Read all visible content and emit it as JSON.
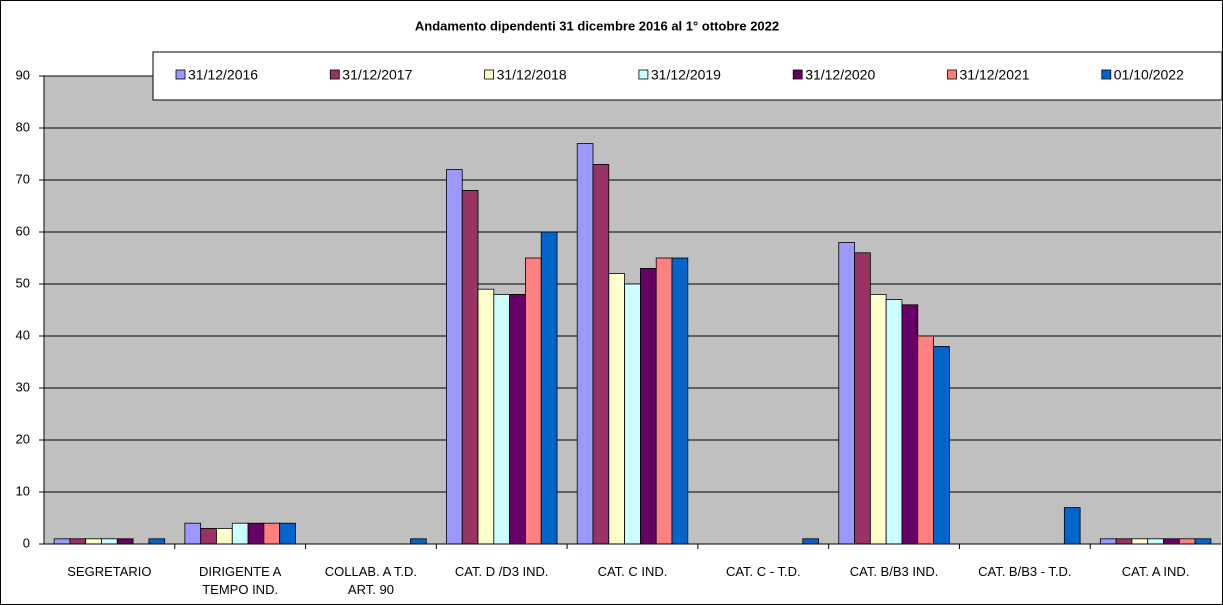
{
  "chart_data": {
    "type": "bar",
    "title": "Andamento dipendenti 31 dicembre 2016 al 1° ottobre 2022",
    "categories": [
      "SEGRETARIO",
      "DIRIGENTE A\nTEMPO IND.",
      "COLLAB. A T.D.\nART. 90",
      "CAT. D /D3 IND.",
      "CAT. C IND.",
      "CAT. C - T.D.",
      "CAT. B/B3 IND.",
      "CAT. B/B3 - T.D.",
      "CAT. A IND."
    ],
    "series": [
      {
        "name": "31/12/2016",
        "color": "#9999ff",
        "values": [
          1,
          4,
          0,
          72,
          77,
          0,
          58,
          0,
          1
        ]
      },
      {
        "name": "31/12/2017",
        "color": "#993366",
        "values": [
          1,
          3,
          0,
          68,
          73,
          0,
          56,
          0,
          1
        ]
      },
      {
        "name": "31/12/2018",
        "color": "#ffffcc",
        "values": [
          1,
          3,
          0,
          49,
          52,
          0,
          48,
          0,
          1
        ]
      },
      {
        "name": "31/12/2019",
        "color": "#ccffff",
        "values": [
          1,
          4,
          0,
          48,
          50,
          0,
          47,
          0,
          1
        ]
      },
      {
        "name": "31/12/2020",
        "color": "#660066",
        "values": [
          1,
          4,
          0,
          48,
          53,
          0,
          46,
          0,
          1
        ]
      },
      {
        "name": "31/12/2021",
        "color": "#ff8080",
        "values": [
          0,
          4,
          0,
          55,
          55,
          0,
          40,
          0,
          1
        ]
      },
      {
        "name": "01/10/2022",
        "color": "#0066cc",
        "values": [
          1,
          4,
          1,
          60,
          55,
          1,
          38,
          7,
          1
        ]
      }
    ],
    "ylim": [
      0,
      90
    ],
    "yticks": [
      0,
      10,
      20,
      30,
      40,
      50,
      60,
      70,
      80,
      90
    ],
    "grid": true
  }
}
